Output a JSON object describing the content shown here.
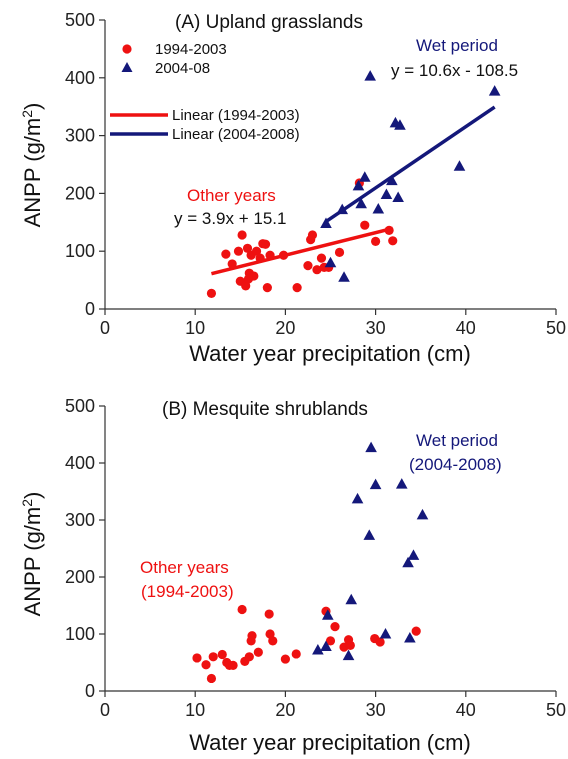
{
  "colors": {
    "other_years": "#ee1111",
    "wet_period": "#14187a",
    "axis": "#333333"
  },
  "panels": [
    {
      "title": "(A) Upland grasslands",
      "xlabel": "Water year precipitation (cm)",
      "ylabel": "ANPP (g/m",
      "ylabel_sup": "2",
      "ylabel_close": ")",
      "legend": {
        "marker1": "1994-2003",
        "marker2": "2004-08",
        "line1": "Linear (1994-2003)",
        "line2": "Linear (2004-2008)"
      },
      "annotations": {
        "wet": "Wet period",
        "other": "Other years",
        "eq_wet": "y = 10.6x - 108.5",
        "eq_other": "y = 3.9x + 15.1"
      }
    },
    {
      "title": "(B)  Mesquite shrublands",
      "xlabel": "Water year precipitation (cm)",
      "ylabel": "ANPP (g/m",
      "ylabel_sup": "2",
      "ylabel_close": ")",
      "annotations": {
        "wet_1": "Wet period",
        "wet_2": "(2004-2008)",
        "other_1": "Other years",
        "other_2": "(1994-2003)"
      }
    }
  ],
  "chart_data": [
    {
      "type": "scatter",
      "title": "(A) Upland grasslands",
      "xlabel": "Water year precipitation (cm)",
      "ylabel": "ANPP (g/m2)",
      "xlim": [
        0,
        50
      ],
      "ylim": [
        0,
        500
      ],
      "xticks": [
        0,
        10,
        20,
        30,
        40,
        50
      ],
      "yticks": [
        0,
        100,
        200,
        300,
        400,
        500
      ],
      "series": [
        {
          "name": "1994-2003",
          "marker": "circle",
          "x": [
            11.8,
            13.4,
            14.1,
            14.8,
            15.0,
            15.2,
            15.6,
            15.8,
            16.0,
            16.2,
            16.5,
            16.8,
            17.2,
            17.5,
            17.8,
            18.0,
            18.3,
            19.8,
            21.3,
            22.5,
            22.8,
            23.0,
            23.5,
            24.0,
            24.3,
            24.8,
            26.0,
            28.2,
            28.8,
            30.0,
            31.5,
            31.9,
            15.9
          ],
          "y": [
            27,
            95,
            78,
            100,
            48,
            128,
            40,
            105,
            62,
            93,
            57,
            100,
            88,
            113,
            112,
            37,
            93,
            93,
            37,
            75,
            120,
            128,
            68,
            88,
            72,
            72,
            98,
            218,
            145,
            117,
            136,
            118,
            52
          ]
        },
        {
          "name": "2004-08",
          "marker": "triangle",
          "x": [
            24.5,
            25.0,
            26.3,
            26.5,
            28.1,
            28.4,
            28.8,
            29.4,
            30.3,
            31.2,
            31.8,
            32.2,
            32.7,
            32.5,
            39.3,
            43.2
          ],
          "y": [
            148,
            80,
            172,
            55,
            213,
            182,
            228,
            403,
            173,
            198,
            222,
            322,
            318,
            193,
            247,
            377
          ]
        }
      ],
      "trendlines": [
        {
          "name": "Linear (1994-2003)",
          "slope": 3.9,
          "intercept": 15.1,
          "x_range": [
            11.8,
            31.9
          ]
        },
        {
          "name": "Linear (2004-2008)",
          "slope": 10.6,
          "intercept": -108.5,
          "x_range": [
            24.5,
            43.2
          ]
        }
      ],
      "legend_position": "top-left"
    },
    {
      "type": "scatter",
      "title": "(B)  Mesquite shrublands",
      "xlabel": "Water year precipitation (cm)",
      "ylabel": "ANPP (g/m2)",
      "xlim": [
        0,
        50
      ],
      "ylim": [
        0,
        500
      ],
      "xticks": [
        0,
        10,
        20,
        30,
        40,
        50
      ],
      "yticks": [
        0,
        100,
        200,
        300,
        400,
        500
      ],
      "series": [
        {
          "x": [
            10.2,
            11.2,
            11.8,
            12.0,
            13.0,
            13.5,
            13.8,
            14.2,
            15.2,
            15.5,
            16.0,
            16.2,
            16.3,
            17.0,
            18.2,
            18.3,
            18.6,
            20.0,
            21.2,
            24.5,
            25.0,
            25.5,
            26.5,
            27.0,
            27.2,
            29.9,
            30.5,
            34.5
          ],
          "y": [
            58,
            46,
            22,
            60,
            64,
            50,
            45,
            45,
            143,
            52,
            60,
            88,
            97,
            68,
            135,
            100,
            88,
            56,
            65,
            140,
            88,
            113,
            77,
            90,
            80,
            92,
            86,
            105
          ]
        },
        {
          "x": [
            23.6,
            24.5,
            24.7,
            27.0,
            27.3,
            28.0,
            29.3,
            29.5,
            30.0,
            31.1,
            32.9,
            33.6,
            34.2,
            33.8,
            35.2
          ],
          "y": [
            72,
            78,
            133,
            62,
            160,
            337,
            273,
            427,
            362,
            100,
            363,
            225,
            238,
            93,
            309
          ]
        }
      ]
    }
  ]
}
